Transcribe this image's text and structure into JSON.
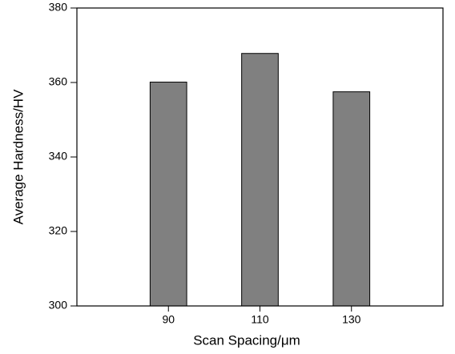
{
  "chart_data": {
    "type": "bar",
    "x_label": "Scan Spacing/μm",
    "y_label": "Average Hardness/HV",
    "categories": [
      "90",
      "110",
      "130"
    ],
    "values": [
      360.1,
      367.8,
      357.5
    ],
    "color": "#808080",
    "ylim": [
      300,
      380
    ],
    "yticks": [
      300,
      320,
      340,
      360,
      380
    ],
    "grid": false
  }
}
